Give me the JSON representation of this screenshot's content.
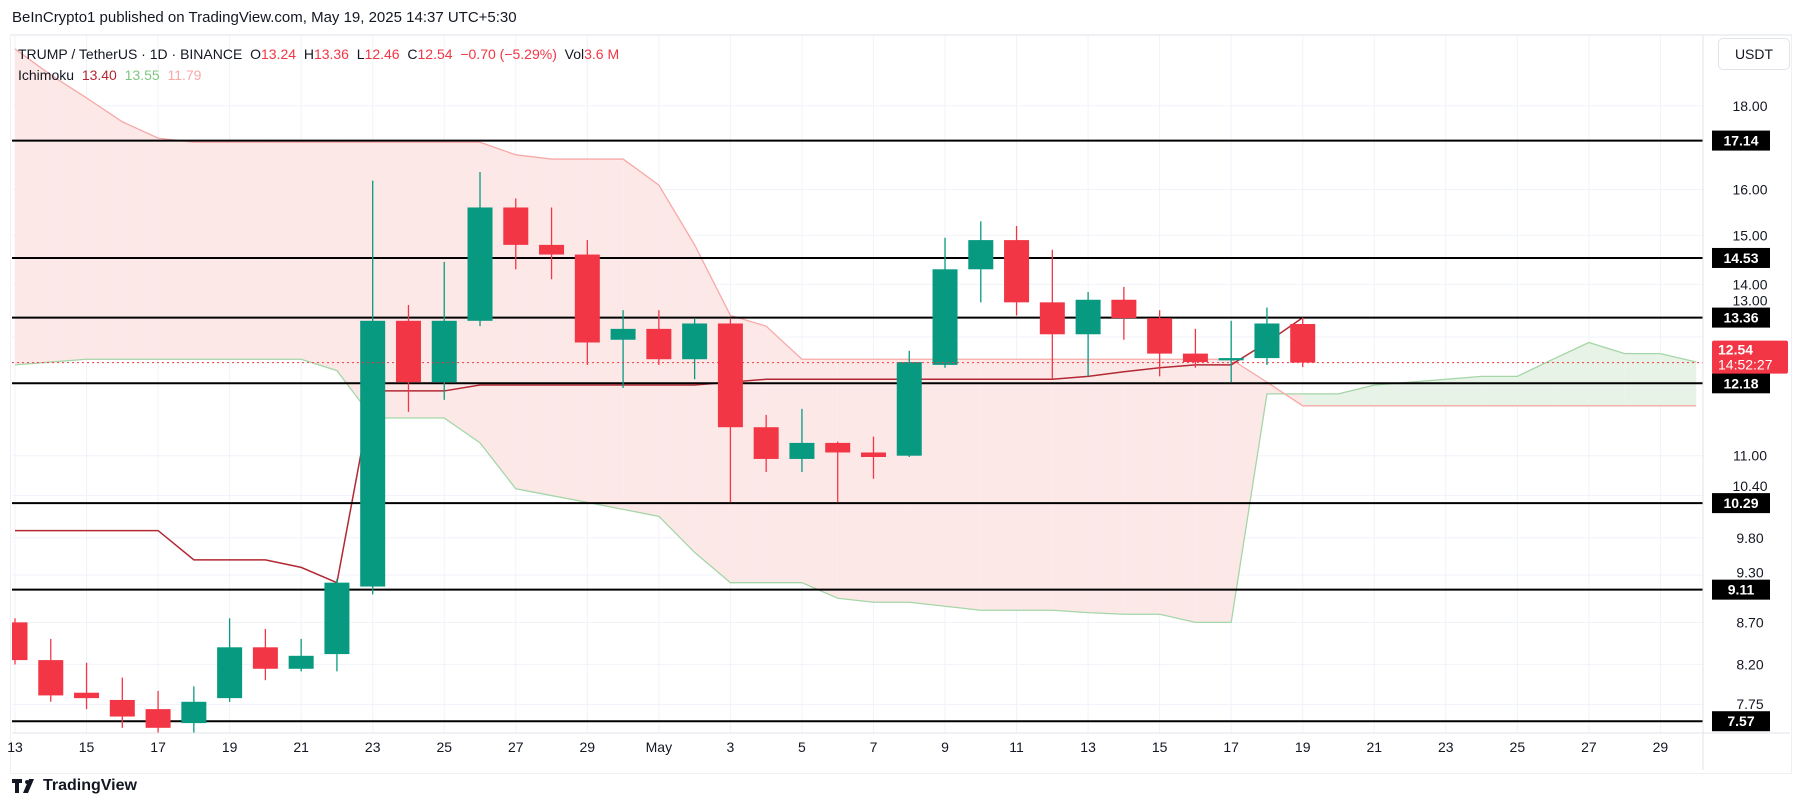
{
  "publisher_line": "BeInCrypto1 published on TradingView.com, May 19, 2025 14:37 UTC+5:30",
  "legend": {
    "symbol": "TRUMP / TetherUS · 1D · BINANCE",
    "o_label": "O",
    "o": "13.24",
    "h_label": "H",
    "h": "13.36",
    "l_label": "L",
    "l": "12.46",
    "c_label": "C",
    "c": "12.54",
    "change": "−0.70 (−5.29%)",
    "vol_label": "Vol",
    "vol": "3.6 M",
    "indicator": "Ichimoku",
    "ind_values": [
      "13.40",
      "13.55",
      "11.79"
    ]
  },
  "currency_button": "USDT",
  "brand": "TradingView",
  "colors": {
    "up": "#089981",
    "down": "#f23645",
    "conversion": "#b22833",
    "span_a": "#a5d6a7",
    "span_b": "#f7a9a7",
    "cloud_bear": "#fde8e8",
    "cloud_bull": "#e8f3e8"
  },
  "chart_data": {
    "type": "candlestick",
    "title": "TRUMP / TetherUS · 1D · BINANCE",
    "yscale": "log",
    "ylim": [
      7.5,
      18.6
    ],
    "y_ticks": [
      "18.00",
      "16.00",
      "15.00",
      "14.00",
      "13.00",
      "11.00",
      "10.40",
      "9.80",
      "9.30",
      "8.70",
      "8.20",
      "7.75"
    ],
    "x_ticks": [
      {
        "i": 0,
        "label": "13"
      },
      {
        "i": 2,
        "label": "15"
      },
      {
        "i": 4,
        "label": "17"
      },
      {
        "i": 6,
        "label": "19"
      },
      {
        "i": 8,
        "label": "21"
      },
      {
        "i": 10,
        "label": "23"
      },
      {
        "i": 12,
        "label": "25"
      },
      {
        "i": 14,
        "label": "27"
      },
      {
        "i": 16,
        "label": "29"
      },
      {
        "i": 18,
        "label": "May"
      },
      {
        "i": 20,
        "label": "3"
      },
      {
        "i": 22,
        "label": "5"
      },
      {
        "i": 24,
        "label": "7"
      },
      {
        "i": 26,
        "label": "9"
      },
      {
        "i": 28,
        "label": "11"
      },
      {
        "i": 30,
        "label": "13"
      },
      {
        "i": 32,
        "label": "15"
      },
      {
        "i": 34,
        "label": "17"
      },
      {
        "i": 36,
        "label": "19"
      },
      {
        "i": 38,
        "label": "21"
      },
      {
        "i": 40,
        "label": "23"
      },
      {
        "i": 42,
        "label": "25"
      },
      {
        "i": 44,
        "label": "27"
      },
      {
        "i": 46,
        "label": "29"
      }
    ],
    "candles": [
      {
        "date": "Apr 13",
        "o": 8.7,
        "h": 8.75,
        "l": 8.2,
        "c": 8.25
      },
      {
        "date": "Apr 14",
        "o": 8.25,
        "h": 8.5,
        "l": 7.78,
        "c": 7.85
      },
      {
        "date": "Apr 15",
        "o": 7.88,
        "h": 8.22,
        "l": 7.7,
        "c": 7.82
      },
      {
        "date": "Apr 16",
        "o": 7.8,
        "h": 8.05,
        "l": 7.5,
        "c": 7.62
      },
      {
        "date": "Apr 17",
        "o": 7.7,
        "h": 7.9,
        "l": 7.45,
        "c": 7.5
      },
      {
        "date": "Apr 18",
        "o": 7.55,
        "h": 7.95,
        "l": 7.45,
        "c": 7.78
      },
      {
        "date": "Apr 19",
        "o": 7.82,
        "h": 8.75,
        "l": 7.78,
        "c": 8.4
      },
      {
        "date": "Apr 20",
        "o": 8.4,
        "h": 8.62,
        "l": 8.02,
        "c": 8.15
      },
      {
        "date": "Apr 21",
        "o": 8.15,
        "h": 8.5,
        "l": 8.12,
        "c": 8.3
      },
      {
        "date": "Apr 22",
        "o": 8.32,
        "h": 9.25,
        "l": 8.12,
        "c": 9.2
      },
      {
        "date": "Apr 23",
        "o": 9.15,
        "h": 16.2,
        "l": 9.05,
        "c": 13.3
      },
      {
        "date": "Apr 24",
        "o": 13.3,
        "h": 13.6,
        "l": 11.7,
        "c": 12.2
      },
      {
        "date": "Apr 25",
        "o": 12.2,
        "h": 14.45,
        "l": 11.9,
        "c": 13.3
      },
      {
        "date": "Apr 26",
        "o": 13.3,
        "h": 16.4,
        "l": 13.2,
        "c": 15.6
      },
      {
        "date": "Apr 27",
        "o": 15.6,
        "h": 15.8,
        "l": 14.3,
        "c": 14.8
      },
      {
        "date": "Apr 28",
        "o": 14.8,
        "h": 15.6,
        "l": 14.1,
        "c": 14.6
      },
      {
        "date": "Apr 29",
        "o": 14.6,
        "h": 14.9,
        "l": 12.5,
        "c": 12.9
      },
      {
        "date": "Apr 30",
        "o": 12.95,
        "h": 13.5,
        "l": 12.1,
        "c": 13.15
      },
      {
        "date": "May 1",
        "o": 13.15,
        "h": 13.5,
        "l": 12.5,
        "c": 12.6
      },
      {
        "date": "May 2",
        "o": 12.6,
        "h": 13.35,
        "l": 12.25,
        "c": 13.25
      },
      {
        "date": "May 3",
        "o": 13.25,
        "h": 13.35,
        "l": 10.3,
        "c": 11.45
      },
      {
        "date": "May 4",
        "o": 11.45,
        "h": 11.65,
        "l": 10.75,
        "c": 10.95
      },
      {
        "date": "May 5",
        "o": 10.95,
        "h": 11.75,
        "l": 10.75,
        "c": 11.2
      },
      {
        "date": "May 6",
        "o": 11.2,
        "h": 11.22,
        "l": 10.3,
        "c": 11.05
      },
      {
        "date": "May 7",
        "o": 11.05,
        "h": 11.3,
        "l": 10.65,
        "c": 10.98
      },
      {
        "date": "May 8",
        "o": 11.0,
        "h": 12.75,
        "l": 10.98,
        "c": 12.55
      },
      {
        "date": "May 9",
        "o": 12.5,
        "h": 14.95,
        "l": 12.45,
        "c": 14.3
      },
      {
        "date": "May 10",
        "o": 14.3,
        "h": 15.3,
        "l": 13.65,
        "c": 14.9
      },
      {
        "date": "May 11",
        "o": 14.9,
        "h": 15.2,
        "l": 13.4,
        "c": 13.65
      },
      {
        "date": "May 12",
        "o": 13.65,
        "h": 14.7,
        "l": 12.25,
        "c": 13.05
      },
      {
        "date": "May 13",
        "o": 13.05,
        "h": 13.85,
        "l": 12.3,
        "c": 13.7
      },
      {
        "date": "May 14",
        "o": 13.7,
        "h": 13.95,
        "l": 12.95,
        "c": 13.35
      },
      {
        "date": "May 15",
        "o": 13.35,
        "h": 13.5,
        "l": 12.3,
        "c": 12.7
      },
      {
        "date": "May 16",
        "o": 12.7,
        "h": 13.15,
        "l": 12.45,
        "c": 12.55
      },
      {
        "date": "May 17",
        "o": 12.58,
        "h": 13.3,
        "l": 12.2,
        "c": 12.62
      },
      {
        "date": "May 18",
        "o": 12.62,
        "h": 13.55,
        "l": 12.5,
        "c": 13.25
      },
      {
        "date": "May 19",
        "o": 13.24,
        "h": 13.36,
        "l": 12.46,
        "c": 12.54
      }
    ],
    "conversion_line": [
      9.9,
      9.9,
      9.9,
      9.9,
      9.9,
      9.5,
      9.5,
      9.5,
      9.4,
      9.2,
      12.05,
      12.05,
      12.05,
      12.15,
      12.15,
      12.15,
      12.15,
      12.15,
      12.15,
      12.15,
      12.2,
      12.25,
      12.25,
      12.25,
      12.25,
      12.25,
      12.25,
      12.25,
      12.25,
      12.25,
      12.3,
      12.38,
      12.45,
      12.5,
      12.5,
      12.9,
      13.36
    ],
    "span_a": [
      12.5,
      12.55,
      12.6,
      12.6,
      12.6,
      12.6,
      12.6,
      12.6,
      12.6,
      12.4,
      11.6,
      11.6,
      11.6,
      11.2,
      10.5,
      10.4,
      10.3,
      10.2,
      10.1,
      9.6,
      9.2,
      9.2,
      9.2,
      9.0,
      8.95,
      8.95,
      8.9,
      8.85,
      8.85,
      8.85,
      8.82,
      8.8,
      8.8,
      8.7,
      8.7,
      12.0,
      12.0,
      12.0,
      12.15,
      12.2,
      12.25,
      12.3,
      12.3,
      12.6,
      12.9,
      12.7,
      12.7,
      12.55
    ],
    "span_b": [
      19.5,
      18.8,
      18.2,
      17.6,
      17.2,
      17.1,
      17.1,
      17.1,
      17.1,
      17.1,
      17.1,
      17.1,
      17.1,
      17.1,
      16.8,
      16.7,
      16.7,
      16.7,
      16.1,
      14.8,
      13.4,
      13.2,
      12.6,
      12.6,
      12.6,
      12.6,
      12.6,
      12.6,
      12.6,
      12.6,
      12.6,
      12.6,
      12.6,
      12.6,
      12.6,
      12.2,
      11.8,
      11.8,
      11.8,
      11.8,
      11.8,
      11.8,
      11.8,
      11.8,
      11.8,
      11.8,
      11.8,
      11.8
    ],
    "horizontal_levels": [
      "17.14",
      "14.53",
      "13.36",
      "12.18",
      "10.29",
      "9.11",
      "7.57"
    ],
    "last_price": {
      "value": "12.54",
      "countdown": "14:52:27"
    }
  }
}
